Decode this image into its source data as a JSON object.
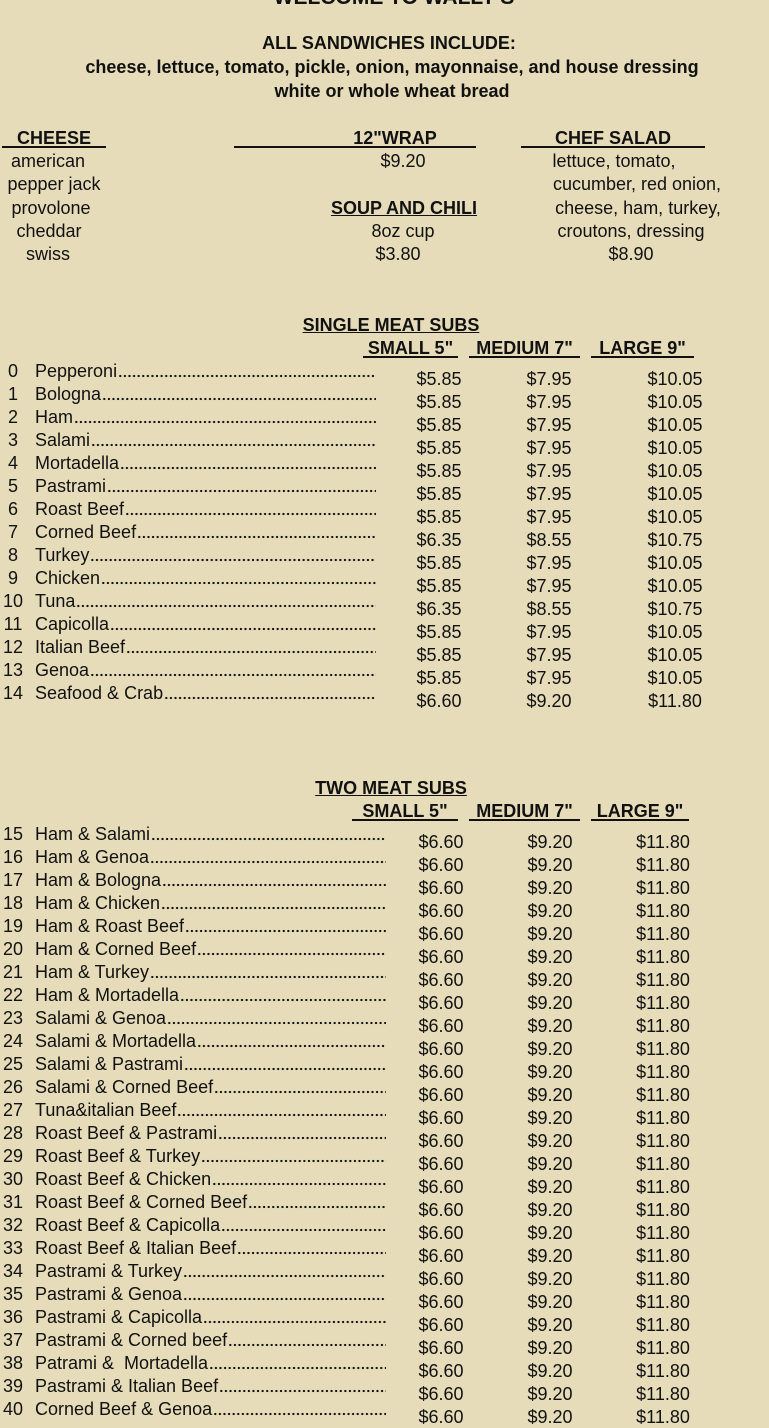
{
  "header": {
    "title": "WELCOME TO WALLY'S",
    "includes_title": "ALL SANDWICHES INCLUDE:",
    "includes_line": "cheese, lettuce, tomato, pickle, onion, mayonnaise, and house dressing",
    "bread_line": "white or whole wheat bread"
  },
  "cheese": {
    "heading": "CHEESE",
    "items": [
      "american",
      "pepper jack",
      "provolone",
      "cheddar",
      "swiss"
    ]
  },
  "wrap": {
    "heading": "12\"WRAP",
    "price": "$9.20"
  },
  "soup": {
    "heading": "SOUP AND CHILI",
    "size": "8oz cup",
    "price": "$3.80"
  },
  "chef_salad": {
    "heading": "CHEF SALAD",
    "lines": [
      "lettuce, tomato,",
      "cucumber, red onion,",
      "cheese, ham, turkey,",
      "croutons, dressing"
    ],
    "price": "$8.90"
  },
  "single_meat": {
    "title": "SINGLE MEAT SUBS",
    "columns": [
      "SMALL 5\"",
      "MEDIUM 7\"",
      "LARGE 9\""
    ],
    "rows": [
      [
        "0",
        "Pepperoni",
        "$5.85",
        "$7.95",
        "$10.05"
      ],
      [
        "1",
        "Bologna",
        "$5.85",
        "$7.95",
        "$10.05"
      ],
      [
        "2",
        "Ham",
        "$5.85",
        "$7.95",
        "$10.05"
      ],
      [
        "3",
        "Salami",
        "$5.85",
        "$7.95",
        "$10.05"
      ],
      [
        "4",
        "Mortadella",
        "$5.85",
        "$7.95",
        "$10.05"
      ],
      [
        "5",
        "Pastrami",
        "$5.85",
        "$7.95",
        "$10.05"
      ],
      [
        "6",
        "Roast Beef",
        "$5.85",
        "$7.95",
        "$10.05"
      ],
      [
        "7",
        "Corned Beef",
        "$6.35",
        "$8.55",
        "$10.75"
      ],
      [
        "8",
        "Turkey",
        "$5.85",
        "$7.95",
        "$10.05"
      ],
      [
        "9",
        "Chicken",
        "$5.85",
        "$7.95",
        "$10.05"
      ],
      [
        "10",
        "Tuna",
        "$6.35",
        "$8.55",
        "$10.75"
      ],
      [
        "11",
        "Capicolla",
        "$5.85",
        "$7.95",
        "$10.05"
      ],
      [
        "12",
        "Italian Beef",
        "$5.85",
        "$7.95",
        "$10.05"
      ],
      [
        "13",
        "Genoa",
        "$5.85",
        "$7.95",
        "$10.05"
      ],
      [
        "14",
        "Seafood & Crab",
        "$6.60",
        "$9.20",
        "$11.80"
      ]
    ]
  },
  "two_meat": {
    "title": "TWO MEAT SUBS",
    "columns": [
      "SMALL 5\"",
      "MEDIUM 7\"",
      "LARGE 9\""
    ],
    "rows": [
      [
        "15",
        "Ham & Salami",
        "$6.60",
        "$9.20",
        "$11.80"
      ],
      [
        "16",
        "Ham & Genoa",
        "$6.60",
        "$9.20",
        "$11.80"
      ],
      [
        "17",
        "Ham & Bologna",
        "$6.60",
        "$9.20",
        "$11.80"
      ],
      [
        "18",
        "Ham & Chicken",
        "$6.60",
        "$9.20",
        "$11.80"
      ],
      [
        "19",
        "Ham & Roast Beef",
        "$6.60",
        "$9.20",
        "$11.80"
      ],
      [
        "20",
        "Ham & Corned Beef",
        "$6.60",
        "$9.20",
        "$11.80"
      ],
      [
        "21",
        "Ham & Turkey",
        "$6.60",
        "$9.20",
        "$11.80"
      ],
      [
        "22",
        "Ham & Mortadella",
        "$6.60",
        "$9.20",
        "$11.80"
      ],
      [
        "23",
        "Salami & Genoa",
        "$6.60",
        "$9.20",
        "$11.80"
      ],
      [
        "24",
        "Salami & Mortadella",
        "$6.60",
        "$9.20",
        "$11.80"
      ],
      [
        "25",
        "Salami & Pastrami",
        "$6.60",
        "$9.20",
        "$11.80"
      ],
      [
        "26",
        "Salami & Corned Beef",
        "$6.60",
        "$9.20",
        "$11.80"
      ],
      [
        "27",
        "Tuna&italian Beef",
        "$6.60",
        "$9.20",
        "$11.80"
      ],
      [
        "28",
        "Roast Beef & Pastrami",
        "$6.60",
        "$9.20",
        "$11.80"
      ],
      [
        "29",
        "Roast Beef & Turkey",
        "$6.60",
        "$9.20",
        "$11.80"
      ],
      [
        "30",
        "Roast Beef & Chicken",
        "$6.60",
        "$9.20",
        "$11.80"
      ],
      [
        "31",
        "Roast Beef & Corned Beef",
        "$6.60",
        "$9.20",
        "$11.80"
      ],
      [
        "32",
        "Roast Beef & Capicolla",
        "$6.60",
        "$9.20",
        "$11.80"
      ],
      [
        "33",
        "Roast Beef & Italian Beef",
        "$6.60",
        "$9.20",
        "$11.80"
      ],
      [
        "34",
        "Pastrami & Turkey",
        "$6.60",
        "$9.20",
        "$11.80"
      ],
      [
        "35",
        "Pastrami & Genoa",
        "$6.60",
        "$9.20",
        "$11.80"
      ],
      [
        "36",
        "Pastrami & Capicolla",
        "$6.60",
        "$9.20",
        "$11.80"
      ],
      [
        "37",
        "Pastrami & Corned beef",
        "$6.60",
        "$9.20",
        "$11.80"
      ],
      [
        "38",
        "Patrami &  Mortadella",
        "$6.60",
        "$9.20",
        "$11.80"
      ],
      [
        "39",
        "Pastrami & Italian Beef",
        "$6.60",
        "$9.20",
        "$11.80"
      ],
      [
        "40",
        "Corned Beef & Genoa",
        "$6.60",
        "$9.20",
        "$11.80"
      ]
    ]
  }
}
